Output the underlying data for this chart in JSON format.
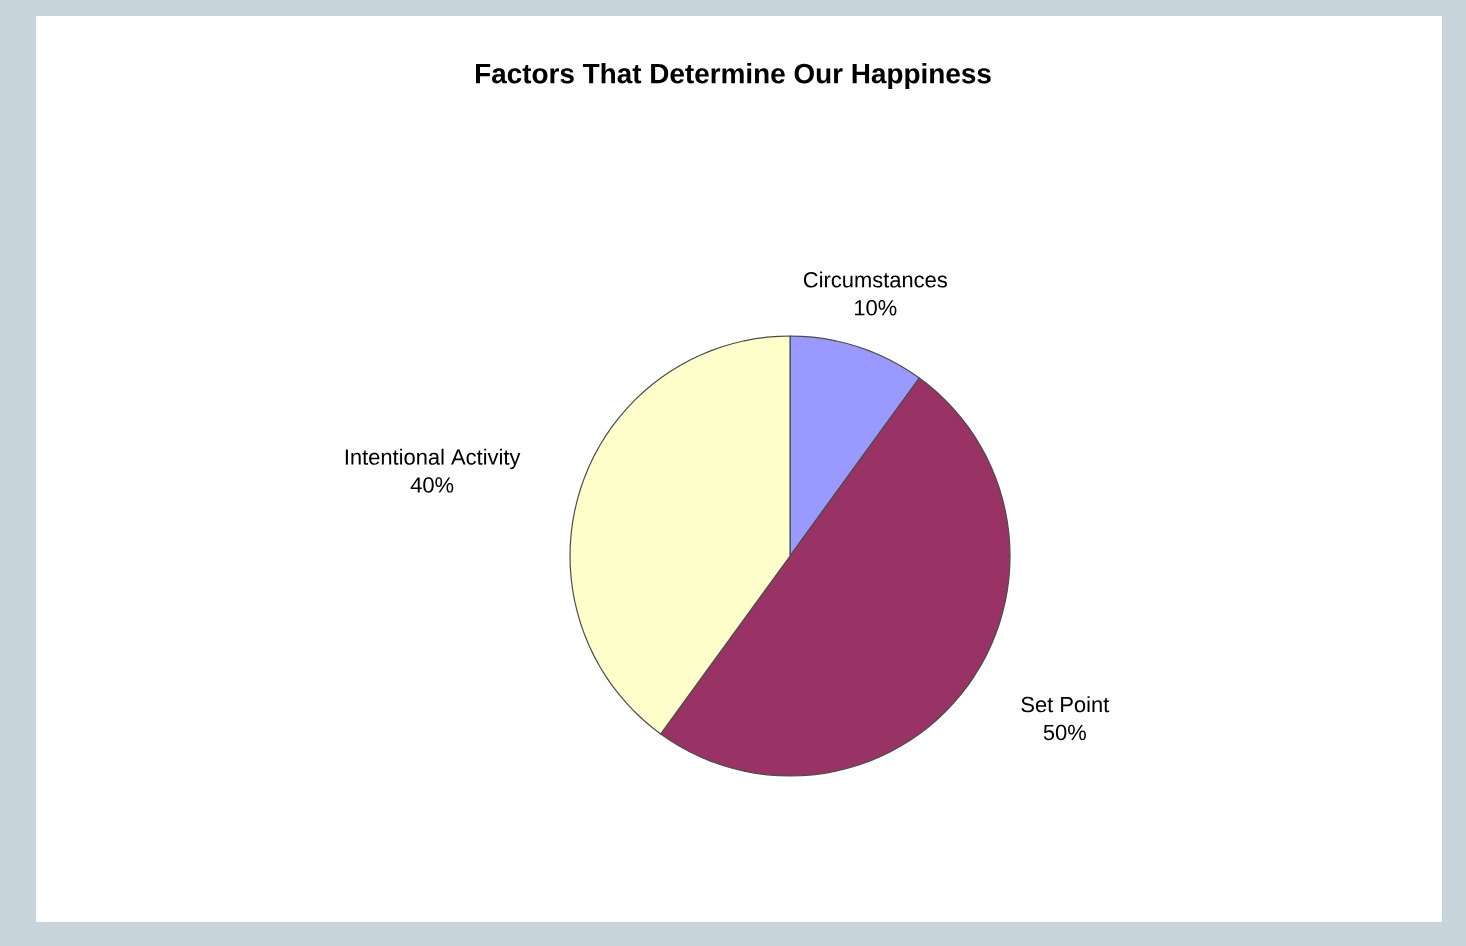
{
  "chart_data": {
    "type": "pie",
    "title": "Factors That Determine Our Happiness",
    "categories": [
      "Circumstances",
      "Set Point",
      "Intentional Activity"
    ],
    "values": [
      10,
      50,
      40
    ],
    "value_labels": [
      "10%",
      "50%",
      "40%"
    ],
    "colors": [
      "#9999ff",
      "#993366",
      "#ffffcc"
    ]
  }
}
